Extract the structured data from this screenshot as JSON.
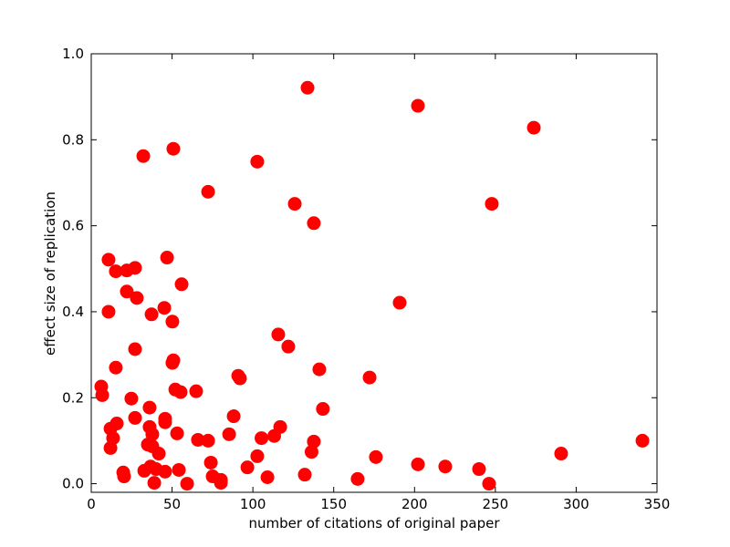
{
  "chart_data": {
    "type": "scatter",
    "xlabel": "number of citations of original paper",
    "ylabel": "effect size of replication",
    "color": "#ff0000",
    "xlim": [
      0,
      350
    ],
    "xticks": [
      0,
      50,
      100,
      150,
      200,
      250,
      300,
      350
    ],
    "ylim": [
      -0.02,
      1.0
    ],
    "yticks": [
      {
        "value": 0,
        "label": "0.0"
      },
      0.2,
      0.4,
      0.6,
      0.8,
      {
        "value": 1,
        "label": "1.0"
      }
    ],
    "x": [
      6.2,
      6.8,
      10.7,
      10.7,
      15.2,
      15.2,
      22,
      27.1,
      22,
      28.2,
      27.1,
      37.3,
      45.2,
      46.9,
      55.9,
      50.2,
      50.8,
      50.2,
      32.2,
      50.8,
      72.3,
      102.7,
      125.9,
      137.7,
      133.8,
      202.1,
      273.8,
      247.8,
      190.8,
      115.7,
      121.9,
      141.1,
      172.2,
      143.3,
      90.9,
      92,
      88.1,
      85.3,
      64.9,
      55.3,
      52,
      24.8,
      36.1,
      27.1,
      45.7,
      45.7,
      36.1,
      37.8,
      15.8,
      11.9,
      13.5,
      11.9,
      35,
      37.8,
      41.8,
      53.1,
      66,
      72.3,
      105.3,
      113.2,
      116.9,
      137.7,
      136.3,
      102.7,
      96.6,
      74,
      176.1,
      202.1,
      219,
      239.9,
      246.1,
      290.7,
      341,
      19.8,
      20.3,
      32.8,
      36.7,
      40.1,
      45.7,
      39,
      54.2,
      59.3,
      75.1,
      80.2,
      80.2,
      109,
      132.1,
      164.8
    ],
    "values": [
      0.226,
      0.206,
      0.521,
      0.4,
      0.494,
      0.27,
      0.496,
      0.502,
      0.447,
      0.432,
      0.313,
      0.394,
      0.409,
      0.526,
      0.464,
      0.377,
      0.287,
      0.281,
      0.762,
      0.779,
      0.679,
      0.749,
      0.651,
      0.606,
      0.921,
      0.879,
      0.828,
      0.651,
      0.421,
      0.347,
      0.319,
      0.266,
      0.247,
      0.174,
      0.251,
      0.245,
      0.157,
      0.115,
      0.215,
      0.213,
      0.219,
      0.198,
      0.177,
      0.153,
      0.151,
      0.143,
      0.132,
      0.115,
      0.14,
      0.128,
      0.106,
      0.083,
      0.091,
      0.087,
      0.07,
      0.117,
      0.102,
      0.1,
      0.106,
      0.111,
      0.132,
      0.098,
      0.074,
      0.064,
      0.038,
      0.049,
      0.062,
      0.045,
      0.04,
      0.034,
      0.0,
      0.07,
      0.1,
      0.026,
      0.017,
      0.03,
      0.04,
      0.034,
      0.028,
      0.002,
      0.032,
      0.0,
      0.017,
      0.009,
      0.002,
      0.015,
      0.021,
      0.011
    ]
  }
}
